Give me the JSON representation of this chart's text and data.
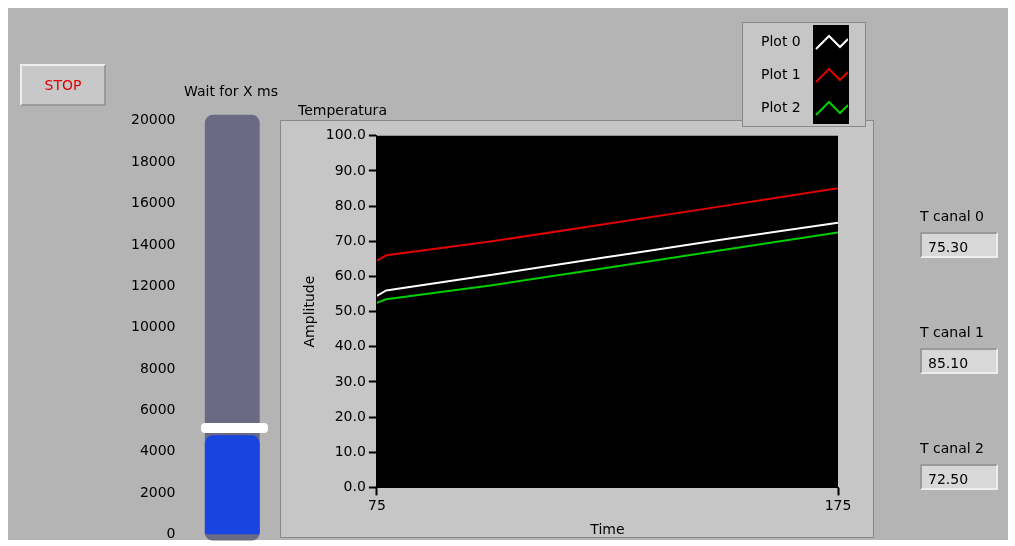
{
  "chart_data": [
    {
      "type": "bar",
      "title": "Wait for X ms",
      "categories": [
        null
      ],
      "values": [
        4800
      ],
      "color": "#1a44e0",
      "ylim": [
        0,
        20000
      ],
      "yticks": [
        0,
        2000,
        4000,
        6000,
        8000,
        10000,
        12000,
        14000,
        16000,
        18000,
        20000
      ],
      "grid": false,
      "legend": false
    },
    {
      "type": "line",
      "title": "Temperatura",
      "xlabel": "Time",
      "ylabel": "Amplitude",
      "x": [
        75,
        77,
        100,
        125,
        150,
        175
      ],
      "series": [
        {
          "name": "Plot 0",
          "color": "#ffffff",
          "values": [
            54.5,
            56,
            60.5,
            65.5,
            70.5,
            75.3
          ]
        },
        {
          "name": "Plot 1",
          "color": "#e00000",
          "values": [
            64.5,
            66,
            70,
            75,
            80,
            85.1
          ]
        },
        {
          "name": "Plot 2",
          "color": "#00d000",
          "values": [
            52.5,
            53.5,
            57.5,
            62.5,
            67.5,
            72.5
          ]
        }
      ],
      "xlim": [
        75,
        175
      ],
      "xticks": [
        75,
        175
      ],
      "ylim": [
        0,
        100
      ],
      "yticks": [
        {
          "value": 0,
          "label": "0.0"
        },
        {
          "value": 10,
          "label": "10.0"
        },
        {
          "value": 20,
          "label": "20.0"
        },
        {
          "value": 30,
          "label": "30.0"
        },
        {
          "value": 40,
          "label": "40.0"
        },
        {
          "value": 50,
          "label": "50.0"
        },
        {
          "value": 60,
          "label": "60.0"
        },
        {
          "value": 70,
          "label": "70.0"
        },
        {
          "value": 80,
          "label": "80.0"
        },
        {
          "value": 90,
          "label": "90.0"
        },
        {
          "value": 100,
          "label": "100.0"
        }
      ],
      "grid": false,
      "legend": "top right",
      "marker": "none",
      "line_style": "solid"
    },
    {
      "type": "other",
      "annotations": [
        "STOP",
        "T canal 0",
        "75.30",
        "T canal 1",
        "85.10",
        "T canal 2",
        "72.50"
      ]
    }
  ]
}
